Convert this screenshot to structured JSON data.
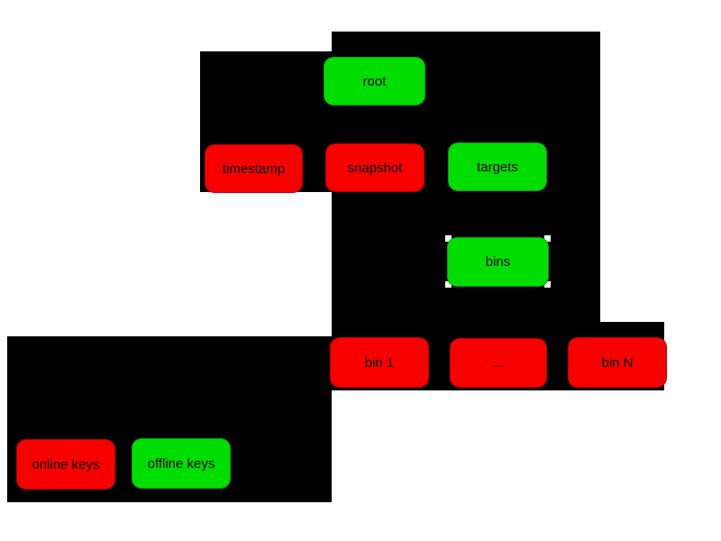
{
  "diagram": {
    "kind": "role-key-hierarchy",
    "background_color": "#ffffff",
    "panel_color": "#000000",
    "text_color": "#000000",
    "colors": {
      "online": "#f80000",
      "offline": "#00dd00"
    },
    "nodes": {
      "root": "root",
      "timestamp": "timestamp",
      "snapshot": "snapshot",
      "targets": "targets",
      "bins": "bins",
      "bin1": "bin 1",
      "bin_ellipsis": "...",
      "binN": "bin N"
    },
    "legend": {
      "online_keys": "online keys",
      "offline_keys": "offline keys"
    }
  }
}
